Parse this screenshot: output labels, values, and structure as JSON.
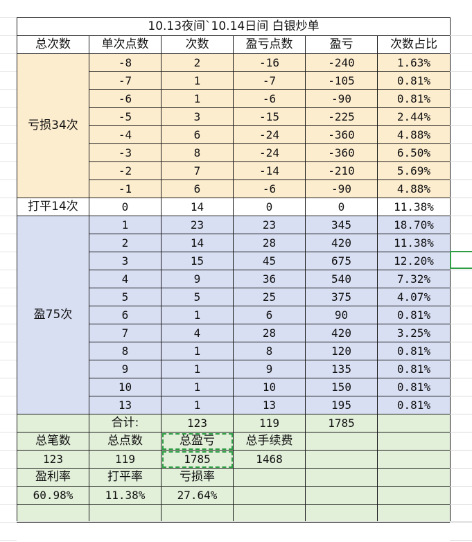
{
  "title": "10.13夜间`10.14日间 白银炒单",
  "headers": [
    "总次数",
    "单次点数",
    "次数",
    "盈亏点数",
    "盈亏",
    "次数占比"
  ],
  "groups": {
    "loss_label": "亏损34次",
    "even_label": "打平14次",
    "win_label": "盈75次"
  },
  "loss_rows": [
    [
      "-8",
      "2",
      "-16",
      "-240",
      "1.63%"
    ],
    [
      "-7",
      "1",
      "-7",
      "-105",
      "0.81%"
    ],
    [
      "-6",
      "1",
      "-6",
      "-90",
      "0.81%"
    ],
    [
      "-5",
      "3",
      "-15",
      "-225",
      "2.44%"
    ],
    [
      "-4",
      "6",
      "-24",
      "-360",
      "4.88%"
    ],
    [
      "-3",
      "8",
      "-24",
      "-360",
      "6.50%"
    ],
    [
      "-2",
      "7",
      "-14",
      "-210",
      "5.69%"
    ],
    [
      "-1",
      "6",
      "-6",
      "-90",
      "4.88%"
    ]
  ],
  "even_row": [
    "0",
    "14",
    "0",
    "0",
    "11.38%"
  ],
  "win_rows": [
    [
      "1",
      "23",
      "23",
      "345",
      "18.70%"
    ],
    [
      "2",
      "14",
      "28",
      "420",
      "11.38%"
    ],
    [
      "3",
      "15",
      "45",
      "675",
      "12.20%"
    ],
    [
      "4",
      "9",
      "36",
      "540",
      "7.32%"
    ],
    [
      "5",
      "5",
      "25",
      "375",
      "4.07%"
    ],
    [
      "6",
      "1",
      "6",
      "90",
      "0.81%"
    ],
    [
      "7",
      "4",
      "28",
      "420",
      "3.25%"
    ],
    [
      "8",
      "1",
      "8",
      "120",
      "0.81%"
    ],
    [
      "9",
      "1",
      "9",
      "135",
      "0.81%"
    ],
    [
      "10",
      "1",
      "10",
      "150",
      "0.81%"
    ],
    [
      "13",
      "1",
      "13",
      "195",
      "0.81%"
    ]
  ],
  "totals": {
    "label": "合计:",
    "count": "123",
    "points": "119",
    "pnl": "1785"
  },
  "summary1": {
    "h1": "总笔数",
    "h2": "总点数",
    "h3": "总盈亏",
    "h4": "总手续费",
    "v1": "123",
    "v2": "119",
    "v3": "1785",
    "v4": "1468"
  },
  "summary2": {
    "h1": "盈利率",
    "h2": "打平率",
    "h3": "亏损率",
    "v1": "60.98%",
    "v2": "11.38%",
    "v3": "27.64%"
  },
  "colors": {
    "loss_fill": "#fdedcf",
    "win_fill": "#d9dff3",
    "summary_fill": "#e2efd9",
    "selection": "#2e9e44"
  }
}
